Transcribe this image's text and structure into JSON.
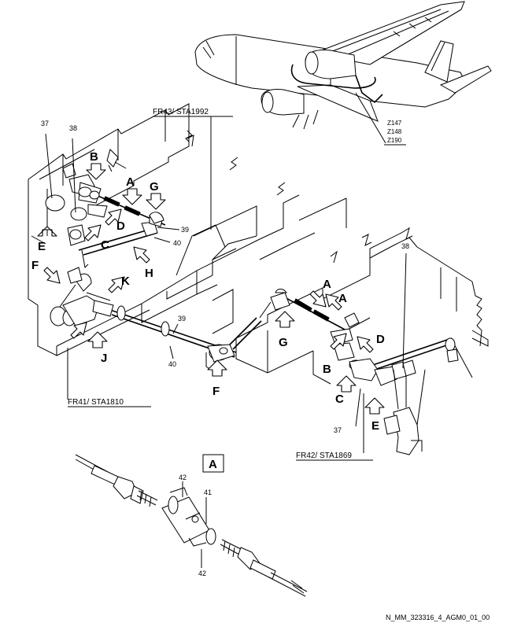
{
  "frames": {
    "fr43": "FR43/ STA1992",
    "fr41": "FR41/ STA1810",
    "fr42": "FR42/ STA1869"
  },
  "zones": [
    "Z147",
    "Z148",
    "Z190"
  ],
  "view_letters": {
    "a": "A",
    "b": "B",
    "c": "C",
    "d": "D",
    "e": "E",
    "f": "F",
    "g": "G",
    "h": "H",
    "j": "J",
    "k": "K"
  },
  "item_numbers": {
    "n37": "37",
    "n38": "38",
    "n39": "39",
    "n40": "40",
    "n41": "41",
    "n42": "42"
  },
  "detail_label": "A",
  "reference_code": "N_MM_323316_4_AGM0_01_00"
}
